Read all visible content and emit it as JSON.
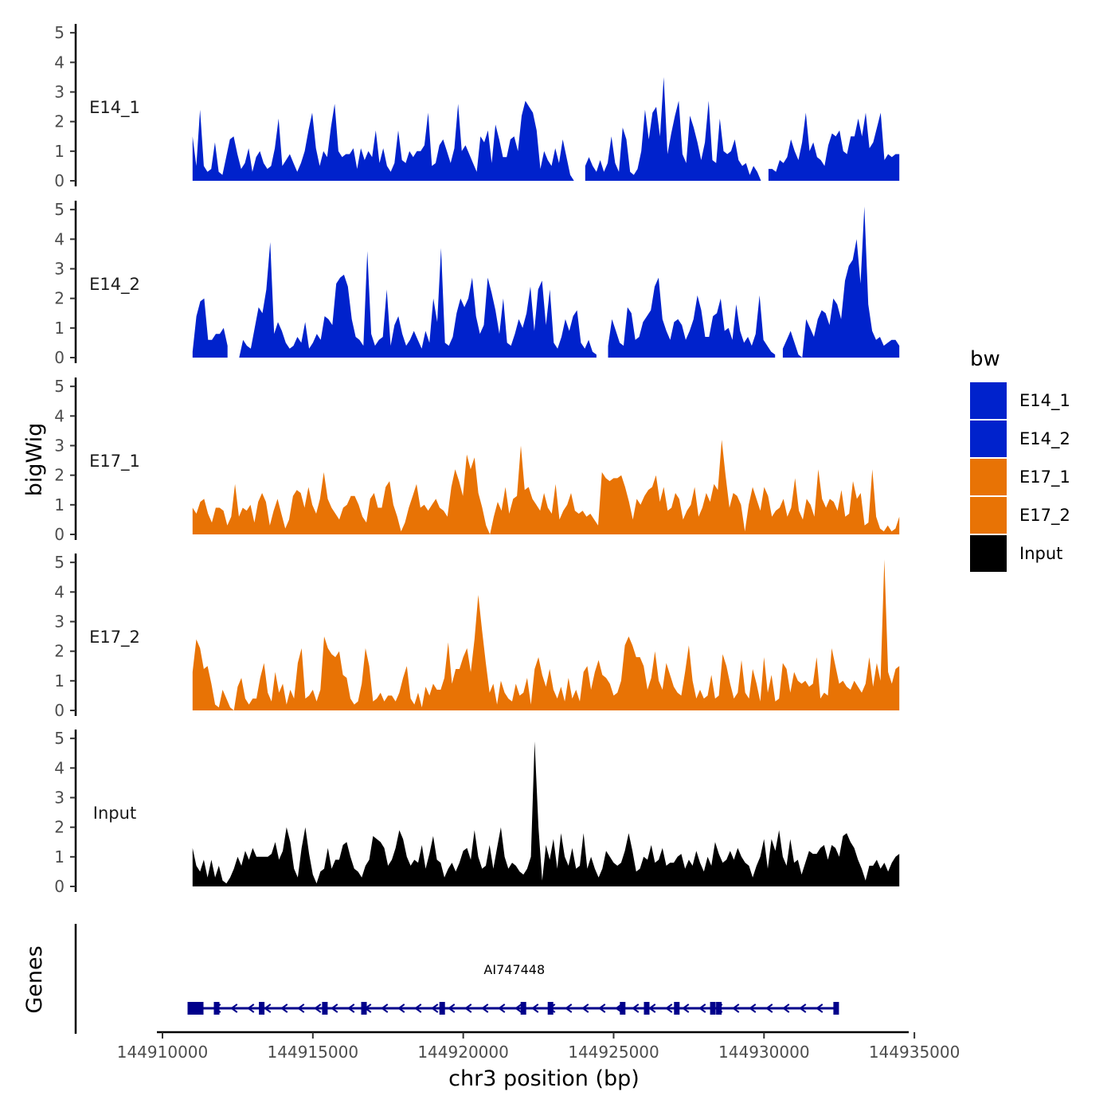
{
  "chart_data": {
    "type": "area",
    "xlabel": "chr3 position (bp)",
    "ylabel": "bigWig",
    "genes_label": "Genes",
    "xlim": [
      144910000,
      144935500
    ],
    "x_ticks": [
      144910000,
      144915000,
      144920000,
      144925000,
      144930000,
      144935000
    ],
    "x_tick_labels": [
      "144910000",
      "144915000",
      "144920000",
      "144925000",
      "144930000",
      "144935000"
    ],
    "y_ticks": [
      0,
      1,
      2,
      3,
      4,
      5
    ],
    "y_tick_labels": [
      "0",
      "1",
      "2",
      "3",
      "4",
      "5"
    ],
    "ylim": [
      0,
      5.3
    ],
    "legend": {
      "title": "bw",
      "position": "right",
      "entries": [
        {
          "label": "E14_1",
          "color": "#0022CC"
        },
        {
          "label": "E14_2",
          "color": "#0022CC"
        },
        {
          "label": "E17_1",
          "color": "#E87305"
        },
        {
          "label": "E17_2",
          "color": "#E87305"
        },
        {
          "label": "Input",
          "color": "#000000"
        }
      ]
    },
    "track_x_start": 144911000,
    "track_x_end": 144934500,
    "series": [
      {
        "name": "E14_1",
        "color": "#0022CC",
        "values": [
          1.5,
          0.5,
          2.4,
          0.5,
          0.3,
          0.4,
          1.3,
          0.3,
          0.2,
          0.8,
          1.4,
          1.5,
          0.9,
          0.4,
          0.6,
          1.1,
          0.3,
          0.8,
          1.0,
          0.6,
          0.4,
          0.5,
          1.1,
          2.1,
          0.5,
          0.7,
          0.9,
          0.6,
          0.3,
          0.6,
          1.0,
          1.7,
          2.3,
          1.1,
          0.5,
          1.0,
          0.8,
          1.8,
          2.6,
          1.0,
          0.8,
          0.9,
          0.9,
          1.1,
          0.4,
          1.1,
          0.7,
          1.0,
          0.8,
          1.7,
          0.6,
          1.1,
          0.5,
          0.3,
          0.6,
          1.7,
          0.7,
          0.6,
          1.0,
          0.8,
          1.0,
          1.0,
          1.2,
          2.3,
          0.5,
          0.6,
          1.2,
          1.4,
          1.0,
          0.6,
          1.1,
          2.6,
          1.0,
          1.2,
          0.9,
          0.6,
          0.3,
          1.5,
          1.3,
          1.7,
          0.6,
          1.9,
          1.4,
          0.8,
          0.8,
          1.4,
          1.5,
          1.0,
          2.2,
          2.7,
          2.5,
          2.3,
          1.7,
          0.4,
          1.0,
          0.7,
          0.5,
          1.1,
          0.6,
          1.4,
          0.8,
          0.2,
          0.0,
          null,
          null,
          0.5,
          0.8,
          0.5,
          0.3,
          0.7,
          0.3,
          0.6,
          1.5,
          0.6,
          0.3,
          1.8,
          1.4,
          0.3,
          0.2,
          0.4,
          1.0,
          2.4,
          1.4,
          2.3,
          2.5,
          1.5,
          3.5,
          0.9,
          1.6,
          2.2,
          2.7,
          0.9,
          0.6,
          2.2,
          1.8,
          1.3,
          0.7,
          1.3,
          2.7,
          0.7,
          0.6,
          2.1,
          1.0,
          0.9,
          1.0,
          1.4,
          0.7,
          0.5,
          0.6,
          0.2,
          0.5,
          0.3,
          0.0,
          null,
          0.4,
          0.4,
          0.3,
          0.7,
          0.6,
          0.8,
          1.4,
          1.0,
          0.7,
          1.3,
          2.3,
          1.0,
          1.3,
          0.8,
          0.7,
          0.5,
          1.2,
          1.6,
          1.5,
          1.7,
          1.0,
          0.9,
          1.5,
          1.5,
          2.1,
          1.5,
          2.3,
          1.1,
          1.3,
          1.8,
          2.3,
          0.7,
          0.9,
          0.8,
          0.9,
          0.9
        ]
      },
      {
        "name": "E14_2",
        "color": "#0022CC",
        "values": [
          0.2,
          1.4,
          1.9,
          2.0,
          0.6,
          0.6,
          0.8,
          0.8,
          1.0,
          0.4,
          null,
          null,
          0.0,
          0.6,
          0.4,
          0.3,
          1.0,
          1.7,
          1.5,
          2.3,
          3.9,
          0.8,
          1.2,
          0.9,
          0.5,
          0.3,
          0.4,
          0.7,
          0.5,
          1.2,
          0.3,
          0.5,
          0.8,
          0.6,
          1.4,
          1.3,
          1.1,
          2.5,
          2.7,
          2.8,
          2.4,
          1.3,
          0.7,
          0.6,
          0.4,
          3.6,
          0.8,
          0.4,
          0.6,
          0.7,
          2.3,
          0.4,
          1.1,
          1.4,
          0.8,
          0.4,
          0.6,
          0.9,
          0.6,
          0.3,
          0.9,
          0.5,
          2.0,
          1.2,
          3.7,
          0.5,
          0.4,
          0.7,
          1.5,
          2.0,
          1.7,
          2.0,
          2.7,
          1.4,
          0.8,
          1.1,
          2.7,
          2.2,
          1.6,
          0.8,
          2.0,
          0.5,
          0.4,
          0.8,
          1.3,
          1.0,
          1.5,
          2.4,
          0.9,
          2.3,
          2.6,
          1.1,
          2.3,
          0.5,
          0.3,
          0.7,
          1.3,
          0.9,
          1.4,
          1.6,
          0.5,
          0.3,
          0.6,
          0.2,
          0.1,
          null,
          null,
          0.4,
          1.3,
          0.9,
          0.5,
          0.4,
          1.7,
          1.5,
          0.6,
          0.7,
          1.2,
          1.4,
          1.6,
          2.4,
          2.7,
          1.3,
          0.9,
          0.6,
          1.2,
          1.3,
          1.1,
          0.6,
          0.9,
          1.3,
          2.1,
          1.6,
          0.7,
          0.7,
          1.4,
          1.5,
          2.0,
          0.9,
          1.0,
          0.6,
          1.8,
          0.9,
          0.5,
          0.7,
          0.4,
          0.8,
          2.1,
          0.6,
          0.4,
          0.2,
          0.1,
          null,
          0.3,
          0.6,
          0.9,
          0.5,
          0.1,
          0.0,
          1.3,
          1.0,
          0.7,
          1.3,
          1.6,
          1.5,
          1.1,
          2.0,
          1.8,
          1.3,
          2.6,
          3.1,
          3.3,
          4.0,
          2.5,
          5.1,
          1.8,
          0.9,
          0.6,
          0.7,
          0.4,
          0.5,
          0.6,
          0.6,
          0.4
        ]
      },
      {
        "name": "E17_1",
        "color": "#E87305",
        "values": [
          0.9,
          0.7,
          1.1,
          1.2,
          0.7,
          0.4,
          0.9,
          0.9,
          0.8,
          0.3,
          0.6,
          1.7,
          0.6,
          0.9,
          0.8,
          1.0,
          0.4,
          1.1,
          1.4,
          1.1,
          0.3,
          0.8,
          1.2,
          0.7,
          0.2,
          0.5,
          1.3,
          1.5,
          1.4,
          0.9,
          1.6,
          1.0,
          0.7,
          1.2,
          2.1,
          1.2,
          0.9,
          0.7,
          0.5,
          0.9,
          1.0,
          1.3,
          1.3,
          1.0,
          0.6,
          0.4,
          1.2,
          1.4,
          0.9,
          0.9,
          1.6,
          1.8,
          1.0,
          0.6,
          0.1,
          0.4,
          0.9,
          1.3,
          1.7,
          0.9,
          1.0,
          0.8,
          1.0,
          1.2,
          0.9,
          0.8,
          0.6,
          1.6,
          2.2,
          1.8,
          1.3,
          2.7,
          2.2,
          2.6,
          1.4,
          0.9,
          0.3,
          0.0,
          0.6,
          1.1,
          0.8,
          1.6,
          0.7,
          1.2,
          1.3,
          3.0,
          1.5,
          1.6,
          1.2,
          1.0,
          0.8,
          1.4,
          0.9,
          0.7,
          1.7,
          0.5,
          0.8,
          1.0,
          1.4,
          0.8,
          0.7,
          0.8,
          0.6,
          0.7,
          0.5,
          0.3,
          2.1,
          1.9,
          1.8,
          1.9,
          1.9,
          2.0,
          1.6,
          1.1,
          0.5,
          1.2,
          1.0,
          1.3,
          1.5,
          1.6,
          2.0,
          1.1,
          1.6,
          0.8,
          0.9,
          1.4,
          1.2,
          0.5,
          0.8,
          1.0,
          1.6,
          0.6,
          0.9,
          1.4,
          1.1,
          1.7,
          1.5,
          3.2,
          2.0,
          0.9,
          1.4,
          1.3,
          1.0,
          0.1,
          1.0,
          1.6,
          1.2,
          0.8,
          1.6,
          1.3,
          0.6,
          0.8,
          0.9,
          1.2,
          0.6,
          0.9,
          1.9,
          0.8,
          0.5,
          1.2,
          1.0,
          0.6,
          2.2,
          1.2,
          0.9,
          1.2,
          1.1,
          0.8,
          1.5,
          0.6,
          0.7,
          1.8,
          1.2,
          1.4,
          0.3,
          0.4,
          2.2,
          0.6,
          0.2,
          0.1,
          0.3,
          0.1,
          0.2,
          0.6
        ]
      },
      {
        "name": "E17_2",
        "color": "#E87305",
        "values": [
          1.3,
          2.4,
          2.1,
          1.4,
          1.5,
          0.9,
          0.2,
          0.1,
          0.7,
          0.4,
          0.1,
          0.0,
          0.8,
          1.1,
          0.4,
          0.2,
          0.4,
          0.4,
          1.1,
          1.6,
          0.6,
          0.3,
          1.3,
          0.6,
          0.9,
          0.2,
          0.7,
          0.4,
          1.6,
          2.1,
          0.4,
          0.5,
          0.7,
          0.3,
          0.7,
          2.5,
          2.1,
          1.9,
          1.8,
          2.0,
          1.2,
          1.1,
          0.4,
          0.2,
          0.3,
          0.9,
          2.1,
          1.5,
          0.3,
          0.4,
          0.6,
          0.3,
          0.5,
          0.5,
          0.3,
          0.6,
          1.1,
          1.5,
          0.4,
          0.2,
          0.6,
          0.1,
          0.8,
          0.5,
          0.9,
          0.7,
          0.7,
          1.1,
          2.3,
          0.9,
          1.4,
          1.4,
          1.8,
          2.1,
          1.3,
          2.4,
          3.9,
          2.7,
          1.6,
          0.6,
          0.9,
          0.2,
          1.0,
          0.6,
          0.4,
          0.3,
          0.9,
          0.5,
          0.6,
          1.1,
          0.2,
          1.4,
          1.8,
          1.2,
          0.8,
          1.4,
          0.7,
          0.4,
          0.8,
          0.3,
          1.1,
          0.4,
          0.7,
          0.3,
          1.3,
          1.5,
          0.7,
          1.3,
          1.7,
          1.2,
          1.1,
          0.9,
          0.5,
          0.6,
          1.0,
          2.2,
          2.5,
          2.2,
          1.8,
          1.8,
          1.5,
          0.7,
          1.1,
          2.0,
          1.0,
          0.7,
          1.6,
          1.2,
          0.8,
          0.6,
          0.5,
          1.3,
          2.2,
          1.0,
          0.4,
          0.7,
          0.4,
          0.5,
          1.2,
          0.4,
          0.5,
          1.9,
          1.5,
          0.9,
          0.4,
          0.6,
          1.7,
          0.6,
          0.4,
          1.4,
          0.9,
          0.3,
          1.8,
          0.6,
          1.2,
          0.3,
          0.4,
          1.6,
          1.4,
          0.6,
          1.3,
          1.0,
          0.9,
          1.0,
          0.8,
          0.9,
          1.8,
          0.4,
          0.6,
          0.5,
          2.1,
          1.5,
          0.9,
          1.0,
          0.8,
          0.7,
          1.0,
          0.8,
          0.6,
          0.9,
          1.8,
          0.8,
          1.6,
          1.0,
          5.1,
          1.3,
          0.9,
          1.4,
          1.5
        ]
      },
      {
        "name": "Input",
        "color": "#000000",
        "values": [
          1.3,
          0.7,
          0.5,
          0.9,
          0.3,
          0.9,
          0.3,
          0.7,
          0.2,
          0.1,
          0.3,
          0.6,
          1.0,
          0.7,
          1.2,
          0.9,
          1.3,
          1.0,
          1.0,
          1.0,
          1.0,
          1.1,
          1.5,
          0.9,
          1.2,
          2.0,
          1.5,
          0.6,
          0.3,
          1.3,
          2.0,
          1.1,
          0.4,
          0.1,
          0.5,
          0.6,
          1.3,
          0.6,
          0.9,
          0.9,
          1.4,
          1.5,
          1.0,
          0.6,
          0.5,
          0.3,
          0.7,
          0.9,
          1.7,
          1.6,
          1.5,
          1.3,
          0.7,
          0.9,
          1.3,
          1.9,
          1.6,
          1.0,
          0.7,
          0.9,
          0.8,
          1.4,
          0.6,
          1.1,
          1.7,
          0.9,
          0.8,
          0.3,
          0.6,
          0.8,
          0.5,
          0.8,
          1.2,
          1.3,
          0.9,
          1.9,
          1.0,
          0.6,
          0.7,
          1.4,
          0.6,
          1.3,
          2.0,
          1.0,
          0.6,
          0.8,
          0.7,
          0.5,
          0.4,
          0.6,
          1.0,
          4.9,
          2.0,
          0.2,
          1.4,
          0.9,
          1.6,
          0.6,
          1.8,
          1.0,
          0.7,
          1.3,
          0.6,
          0.7,
          1.8,
          0.6,
          1.0,
          0.6,
          0.3,
          0.6,
          1.2,
          1.0,
          0.8,
          0.7,
          0.8,
          1.2,
          1.8,
          1.2,
          0.5,
          0.6,
          1.0,
          0.9,
          1.4,
          0.8,
          0.9,
          1.3,
          0.7,
          0.8,
          0.8,
          1.0,
          1.1,
          0.6,
          0.9,
          0.7,
          1.2,
          0.8,
          0.5,
          1.0,
          0.7,
          1.5,
          1.1,
          0.8,
          0.9,
          1.2,
          0.9,
          1.3,
          1.0,
          0.8,
          0.7,
          0.3,
          0.7,
          1.0,
          1.6,
          0.6,
          1.6,
          1.2,
          1.9,
          1.0,
          0.7,
          1.6,
          0.8,
          0.9,
          0.4,
          0.8,
          1.2,
          1.1,
          1.1,
          1.3,
          1.4,
          0.9,
          1.4,
          1.3,
          1.0,
          1.7,
          1.8,
          1.5,
          1.3,
          0.9,
          0.6,
          0.2,
          0.7,
          0.7,
          0.9,
          0.6,
          0.8,
          0.5,
          0.8,
          1.0,
          1.1
        ]
      }
    ],
    "gene": {
      "name": "AI747448",
      "start": 144911000,
      "end": 144932400,
      "strand": "-",
      "exon_positions": [
        144911100,
        144911800,
        144913300,
        144915400,
        144916700,
        144919300,
        144922000,
        144922900,
        144925300,
        144926100,
        144927100,
        144928300,
        144928500,
        144932400
      ]
    }
  }
}
